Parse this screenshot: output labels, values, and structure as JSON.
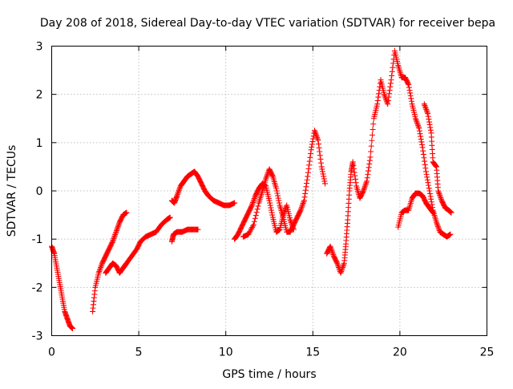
{
  "chart_data": {
    "type": "scatter",
    "title": "Day 208 of 2018, Sidereal Day-to-day VTEC variation (SDTVAR) for receiver bepa",
    "xlabel": "GPS time / hours",
    "ylabel": "SDTVAR / TECUs",
    "xlim": [
      0,
      25
    ],
    "ylim": [
      -3,
      3
    ],
    "xticks": [
      0,
      5,
      10,
      15,
      20,
      25
    ],
    "yticks": [
      -3,
      -2,
      -1,
      0,
      1,
      2,
      3
    ],
    "grid": true,
    "marker": "+",
    "series": [
      {
        "name": "SDTVAR",
        "color": "#ff0000",
        "segments": [
          [
            [
              0,
              -1.15
            ],
            [
              0.15,
              -1.3
            ],
            [
              0.3,
              -1.6
            ],
            [
              0.45,
              -1.9
            ],
            [
              0.6,
              -2.2
            ],
            [
              0.75,
              -2.5
            ],
            [
              0.9,
              -2.65
            ],
            [
              1.05,
              -2.8
            ],
            [
              1.2,
              -2.85
            ]
          ],
          [
            [
              2.35,
              -2.5
            ],
            [
              2.5,
              -2.0
            ],
            [
              2.7,
              -1.7
            ],
            [
              2.9,
              -1.5
            ],
            [
              3.1,
              -1.35
            ],
            [
              3.3,
              -1.2
            ],
            [
              3.5,
              -1.05
            ],
            [
              3.7,
              -0.85
            ],
            [
              3.9,
              -0.65
            ],
            [
              4.1,
              -0.5
            ],
            [
              4.3,
              -0.45
            ]
          ],
          [
            [
              3.1,
              -1.7
            ],
            [
              3.3,
              -1.6
            ],
            [
              3.5,
              -1.5
            ],
            [
              3.7,
              -1.55
            ],
            [
              3.9,
              -1.7
            ],
            [
              4.1,
              -1.6
            ],
            [
              4.3,
              -1.5
            ],
            [
              4.6,
              -1.35
            ],
            [
              4.9,
              -1.2
            ],
            [
              5.1,
              -1.05
            ],
            [
              5.4,
              -0.95
            ],
            [
              5.7,
              -0.9
            ],
            [
              6.0,
              -0.85
            ],
            [
              6.3,
              -0.7
            ],
            [
              6.6,
              -0.6
            ],
            [
              6.8,
              -0.55
            ]
          ],
          [
            [
              6.9,
              -0.2
            ],
            [
              7.05,
              -0.25
            ],
            [
              7.2,
              -0.1
            ],
            [
              7.4,
              0.1
            ],
            [
              7.6,
              0.2
            ],
            [
              7.8,
              0.3
            ],
            [
              8.0,
              0.35
            ],
            [
              8.2,
              0.4
            ],
            [
              8.4,
              0.3
            ],
            [
              8.6,
              0.15
            ],
            [
              8.8,
              0.0
            ],
            [
              9.0,
              -0.1
            ],
            [
              9.3,
              -0.2
            ],
            [
              9.6,
              -0.25
            ],
            [
              9.9,
              -0.3
            ],
            [
              10.2,
              -0.3
            ],
            [
              10.5,
              -0.25
            ]
          ],
          [
            [
              6.9,
              -1.05
            ],
            [
              7.0,
              -0.9
            ],
            [
              7.2,
              -0.85
            ],
            [
              7.5,
              -0.85
            ],
            [
              7.8,
              -0.8
            ],
            [
              8.1,
              -0.8
            ],
            [
              8.4,
              -0.8
            ]
          ],
          [
            [
              10.5,
              -1.0
            ],
            [
              10.7,
              -0.9
            ],
            [
              10.9,
              -0.75
            ],
            [
              11.1,
              -0.6
            ],
            [
              11.3,
              -0.45
            ],
            [
              11.5,
              -0.3
            ],
            [
              11.7,
              -0.1
            ],
            [
              11.9,
              0.05
            ],
            [
              12.1,
              0.15
            ],
            [
              12.3,
              0.1
            ],
            [
              12.5,
              -0.2
            ],
            [
              12.7,
              -0.55
            ],
            [
              12.9,
              -0.85
            ],
            [
              13.1,
              -0.8
            ],
            [
              13.3,
              -0.5
            ],
            [
              13.5,
              -0.3
            ],
            [
              13.7,
              -0.6
            ],
            [
              13.9,
              -0.8
            ]
          ],
          [
            [
              11.0,
              -0.95
            ],
            [
              11.3,
              -0.9
            ],
            [
              11.6,
              -0.7
            ],
            [
              11.9,
              -0.25
            ],
            [
              12.1,
              0.0
            ],
            [
              12.3,
              0.25
            ],
            [
              12.5,
              0.45
            ],
            [
              12.7,
              0.3
            ],
            [
              12.9,
              0.05
            ],
            [
              13.1,
              -0.3
            ],
            [
              13.3,
              -0.55
            ],
            [
              13.5,
              -0.85
            ],
            [
              13.7,
              -0.85
            ],
            [
              13.9,
              -0.7
            ],
            [
              14.1,
              -0.55
            ],
            [
              14.3,
              -0.4
            ],
            [
              14.5,
              -0.2
            ],
            [
              14.7,
              0.3
            ],
            [
              14.9,
              0.85
            ],
            [
              15.1,
              1.25
            ],
            [
              15.3,
              1.05
            ],
            [
              15.5,
              0.5
            ],
            [
              15.7,
              0.15
            ]
          ],
          [
            [
              15.8,
              -1.3
            ],
            [
              16.0,
              -1.15
            ],
            [
              16.2,
              -1.35
            ],
            [
              16.4,
              -1.5
            ],
            [
              16.6,
              -1.7
            ],
            [
              16.8,
              -1.5
            ],
            [
              16.9,
              -1.1
            ],
            [
              17.0,
              -0.6
            ],
            [
              17.1,
              0.0
            ],
            [
              17.2,
              0.4
            ],
            [
              17.3,
              0.6
            ],
            [
              17.5,
              0.1
            ],
            [
              17.7,
              -0.15
            ],
            [
              17.9,
              0.0
            ],
            [
              18.1,
              0.2
            ],
            [
              18.3,
              0.7
            ],
            [
              18.5,
              1.5
            ],
            [
              18.7,
              1.8
            ],
            [
              18.9,
              2.3
            ],
            [
              19.1,
              2.0
            ],
            [
              19.3,
              1.8
            ],
            [
              19.5,
              2.3
            ],
            [
              19.7,
              2.9
            ],
            [
              19.9,
              2.6
            ],
            [
              20.1,
              2.35
            ],
            [
              20.3,
              2.35
            ],
            [
              20.5,
              2.2
            ],
            [
              20.7,
              1.8
            ],
            [
              20.9,
              1.5
            ],
            [
              21.1,
              1.3
            ],
            [
              21.3,
              0.9
            ],
            [
              21.5,
              0.4
            ],
            [
              21.7,
              0.0
            ],
            [
              21.9,
              -0.4
            ],
            [
              22.1,
              -0.65
            ],
            [
              22.3,
              -0.85
            ],
            [
              22.5,
              -0.9
            ],
            [
              22.7,
              -0.95
            ],
            [
              22.9,
              -0.9
            ]
          ],
          [
            [
              19.9,
              -0.75
            ],
            [
              20.1,
              -0.45
            ],
            [
              20.3,
              -0.4
            ],
            [
              20.5,
              -0.4
            ],
            [
              20.7,
              -0.15
            ],
            [
              20.9,
              -0.05
            ],
            [
              21.1,
              -0.05
            ],
            [
              21.3,
              -0.1
            ],
            [
              21.5,
              -0.25
            ],
            [
              21.7,
              -0.35
            ],
            [
              21.9,
              -0.45
            ]
          ],
          [
            [
              21.4,
              1.8
            ],
            [
              21.6,
              1.6
            ],
            [
              21.8,
              1.2
            ],
            [
              21.9,
              0.6
            ],
            [
              22.1,
              0.5
            ],
            [
              22.2,
              0.0
            ],
            [
              22.4,
              -0.2
            ],
            [
              22.6,
              -0.35
            ],
            [
              22.8,
              -0.4
            ],
            [
              22.95,
              -0.45
            ]
          ]
        ]
      }
    ]
  }
}
